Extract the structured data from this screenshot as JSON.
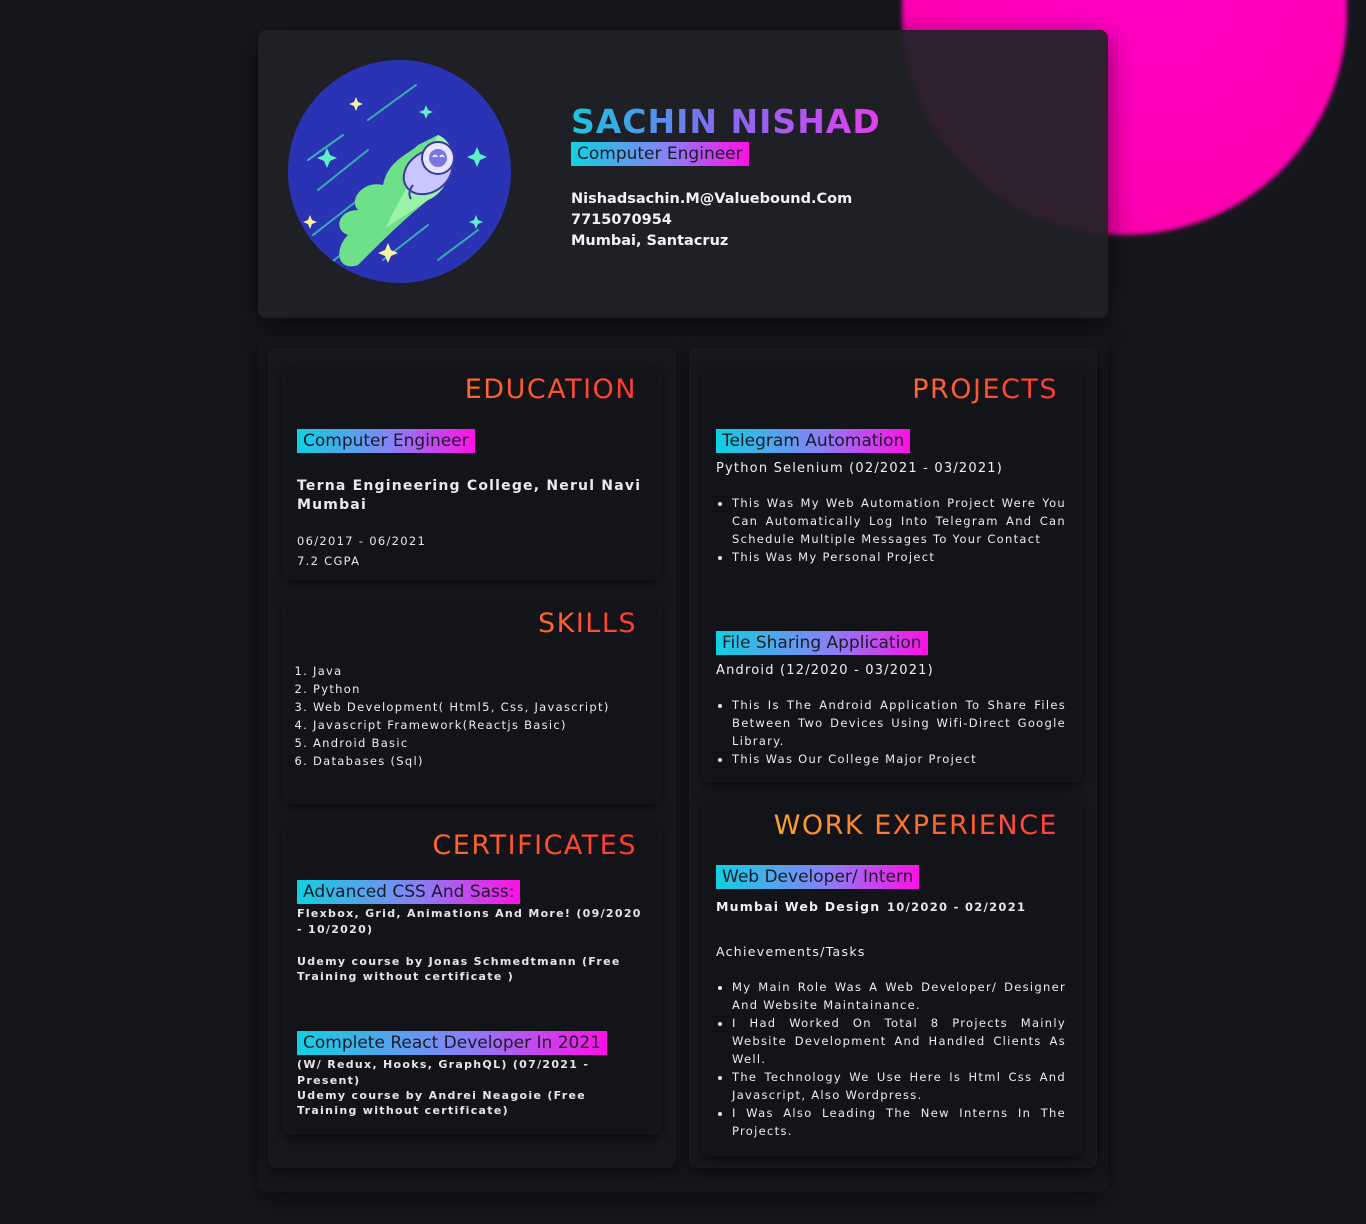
{
  "header": {
    "name": "SACHIN NISHAD",
    "role": "Computer Engineer",
    "email": "Nishadsachin.M@Valuebound.Com",
    "phone": "7715070954",
    "location": "Mumbai, Santacruz",
    "avatar_icon": "astronaut-rocket-icon"
  },
  "education": {
    "title": "EDUCATION",
    "degree": "Computer Engineer",
    "college": "Terna Engineering College, Nerul Navi Mumbai",
    "dates": "06/2017 - 06/2021",
    "grade": "7.2 CGPA"
  },
  "skills": {
    "title": "SKILLS",
    "items": [
      "Java",
      "Python",
      "Web Development( Html5, Css, Javascript)",
      "Javascript Framework(Reactjs Basic)",
      "Android Basic",
      "Databases (Sql)"
    ]
  },
  "certificates": {
    "title": "CERTIFICATES",
    "items": [
      {
        "name": "Advanced CSS And Sass:",
        "detail": "Flexbox, Grid, Animations And More! (09/2020 - 10/2020)",
        "source": "Udemy course by Jonas Schmedtmann (Free Training without certificate )"
      },
      {
        "name": "Complete React Developer In 2021",
        "detail": "(W/ Redux, Hooks, GraphQL) (07/2021 - Present)",
        "source": "Udemy course by Andrei Neagoie (Free Training without certificate)"
      }
    ]
  },
  "projects": {
    "title": "PROJECTS",
    "items": [
      {
        "name": "Telegram Automation",
        "meta": "Python Selenium (02/2021 - 03/2021)",
        "bullets": [
          "This Was My Web Automation Project Were You Can Automatically Log Into Telegram And Can Schedule Multiple Messages To Your Contact",
          "This Was My Personal Project"
        ]
      },
      {
        "name": "File Sharing Application",
        "meta": "Android (12/2020 - 03/2021)",
        "bullets": [
          "This Is The Android Application To Share Files Between Two Devices Using Wifi-Direct Google Library.",
          "This Was Our College Major Project"
        ]
      }
    ]
  },
  "work": {
    "title": "WORK EXPERIENCE",
    "role": "Web Developer/ Intern",
    "company": "Mumbai Web Design",
    "dates": "10/2020 - 02/2021",
    "achievements_label": "Achievements/Tasks",
    "bullets": [
      "My Main Role Was A Web Developer/ Designer And Website Maintainance.",
      "I Had Worked On Total 8 Projects Mainly Website Development And Handled Clients As Well.",
      "The Technology We Use Here Is Html Css And Javascript, Also Wordpress.",
      "I Was Also Leading The New Interns In The Projects."
    ]
  },
  "colors": {
    "background": "#16171c",
    "accent_pink": "#ff00c8",
    "accent_cyan": "#10d0e0",
    "title_red": "#ff4a30"
  }
}
